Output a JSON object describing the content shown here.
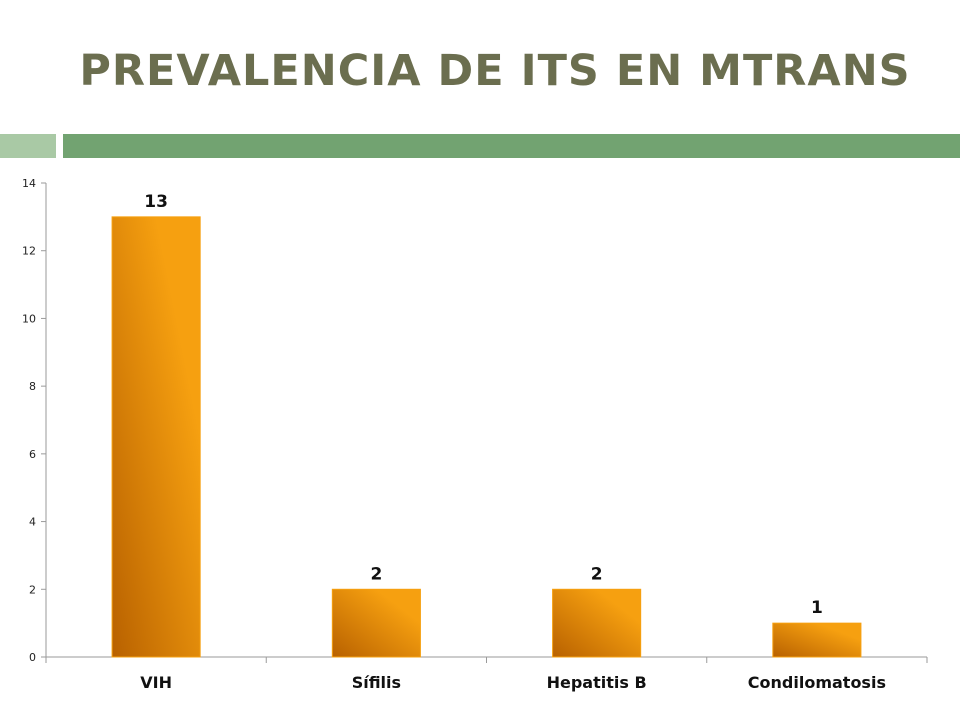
{
  "slide": {
    "title": "PREVALENCIA DE ITS EN MTRANS"
  },
  "colors": {
    "title": "#6b6e4f",
    "accent_light": "#a9c9a5",
    "accent": "#72a371",
    "bar_light": "#f6a010",
    "bar_dark": "#b86100",
    "axis": "#9a9a9a"
  },
  "chart_data": {
    "type": "bar",
    "categories": [
      "VIH",
      "Sífilis",
      "Hepatitis B",
      "Condilomatosis"
    ],
    "values": [
      13,
      2,
      2,
      1
    ],
    "title": "",
    "xlabel": "",
    "ylabel": "",
    "ylim": [
      0,
      14
    ],
    "yticks": [
      0,
      2,
      4,
      6,
      8,
      10,
      12,
      14
    ],
    "data_labels": true,
    "grid": false,
    "legend": "none"
  }
}
